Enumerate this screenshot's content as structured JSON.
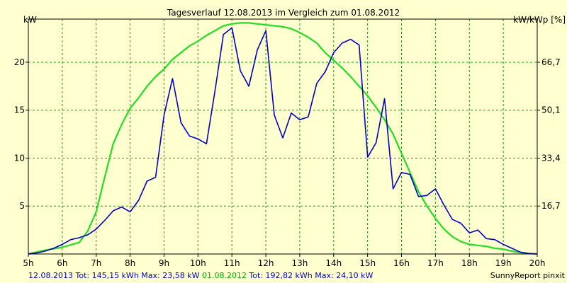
{
  "chart_data": {
    "type": "line",
    "title": "Tagesverlauf 12.08.2013 im Vergleich zum 01.08.2012",
    "ylabel_left": "kW",
    "ylabel_right": "kW/kWp [%]",
    "x_ticks": [
      "5h",
      "6h",
      "7h",
      "8h",
      "9h",
      "10h",
      "11h",
      "12h",
      "13h",
      "14h",
      "15h",
      "16h",
      "17h",
      "18h",
      "19h",
      "20h"
    ],
    "x_range": [
      5,
      20
    ],
    "ylim": [
      0,
      24.5
    ],
    "y_ticks_left": [
      5,
      10,
      15,
      20
    ],
    "y_ticks_right": [
      {
        "value": 5.0,
        "label": "16,7"
      },
      {
        "value": 10.0,
        "label": "33,4"
      },
      {
        "value": 15.0,
        "label": "50,1"
      },
      {
        "value": 20.0,
        "label": "66,7"
      }
    ],
    "grid": true,
    "series": [
      {
        "name": "12.08.2013",
        "color": "#0000cc",
        "x": [
          5.0,
          5.25,
          5.5,
          5.75,
          6.0,
          6.25,
          6.5,
          6.75,
          7.0,
          7.25,
          7.5,
          7.75,
          8.0,
          8.25,
          8.5,
          8.75,
          9.0,
          9.25,
          9.5,
          9.75,
          10.0,
          10.25,
          10.5,
          10.75,
          11.0,
          11.25,
          11.5,
          11.75,
          12.0,
          12.25,
          12.5,
          12.75,
          13.0,
          13.25,
          13.5,
          13.75,
          14.0,
          14.25,
          14.5,
          14.75,
          15.0,
          15.25,
          15.5,
          15.75,
          16.0,
          16.25,
          16.5,
          16.75,
          17.0,
          17.25,
          17.5,
          17.75,
          18.0,
          18.25,
          18.5,
          18.75,
          19.0,
          19.25,
          19.5,
          19.75,
          20.0
        ],
        "values": [
          0.0,
          0.1,
          0.3,
          0.6,
          1.0,
          1.5,
          1.7,
          2.0,
          2.6,
          3.5,
          4.5,
          4.9,
          4.4,
          5.6,
          7.6,
          8.0,
          14.5,
          18.3,
          13.7,
          12.3,
          12.0,
          11.5,
          17.0,
          22.9,
          23.6,
          19.1,
          17.5,
          21.3,
          23.3,
          14.5,
          12.1,
          14.7,
          14.0,
          14.3,
          17.8,
          19.0,
          21.0,
          22.0,
          22.4,
          21.8,
          10.1,
          11.6,
          16.2,
          6.8,
          8.5,
          8.3,
          6.0,
          6.1,
          6.8,
          5.1,
          3.6,
          3.2,
          2.2,
          2.5,
          1.6,
          1.5,
          1.0,
          0.6,
          0.2,
          0.05,
          0.0
        ]
      },
      {
        "name": "01.08.2012",
        "color": "#22dd22",
        "x": [
          5.0,
          5.5,
          6.0,
          6.5,
          6.75,
          7.0,
          7.25,
          7.5,
          7.75,
          8.0,
          8.25,
          8.5,
          8.75,
          9.0,
          9.25,
          9.5,
          9.75,
          10.0,
          10.25,
          10.5,
          10.75,
          11.0,
          11.25,
          11.5,
          11.75,
          12.0,
          12.25,
          12.5,
          12.75,
          13.0,
          13.25,
          13.5,
          13.75,
          14.0,
          14.25,
          14.5,
          14.75,
          15.0,
          15.25,
          15.5,
          15.75,
          16.0,
          16.25,
          16.5,
          16.75,
          17.0,
          17.25,
          17.5,
          17.75,
          18.0,
          18.25,
          18.5,
          18.75,
          19.0,
          19.25,
          19.5,
          19.75,
          20.0
        ],
        "values": [
          0.0,
          0.4,
          0.7,
          1.2,
          2.4,
          4.4,
          8.0,
          11.5,
          13.5,
          15.2,
          16.3,
          17.5,
          18.5,
          19.3,
          20.3,
          21.0,
          21.7,
          22.2,
          22.8,
          23.3,
          23.8,
          24.0,
          24.1,
          24.1,
          24.0,
          23.9,
          23.8,
          23.7,
          23.5,
          23.1,
          22.6,
          22.0,
          21.0,
          20.2,
          19.4,
          18.5,
          17.5,
          16.5,
          15.3,
          14.0,
          12.5,
          10.5,
          8.5,
          6.5,
          5.0,
          3.7,
          2.6,
          1.8,
          1.3,
          1.0,
          0.9,
          0.8,
          0.6,
          0.5,
          0.3,
          0.15,
          0.05,
          0.0
        ]
      }
    ]
  },
  "footer": {
    "date_2013": "12.08.2013",
    "stats_2013": "Tot: 145,15 kWh Max: 23,58 kW",
    "date_2012": "01.08.2012",
    "stats_2012": "Tot: 192,82 kWh Max: 24,10 kW",
    "brand": "SunnyReport pinxit"
  },
  "colors": {
    "background": "#ffffd0",
    "grid": "#00aa00"
  }
}
